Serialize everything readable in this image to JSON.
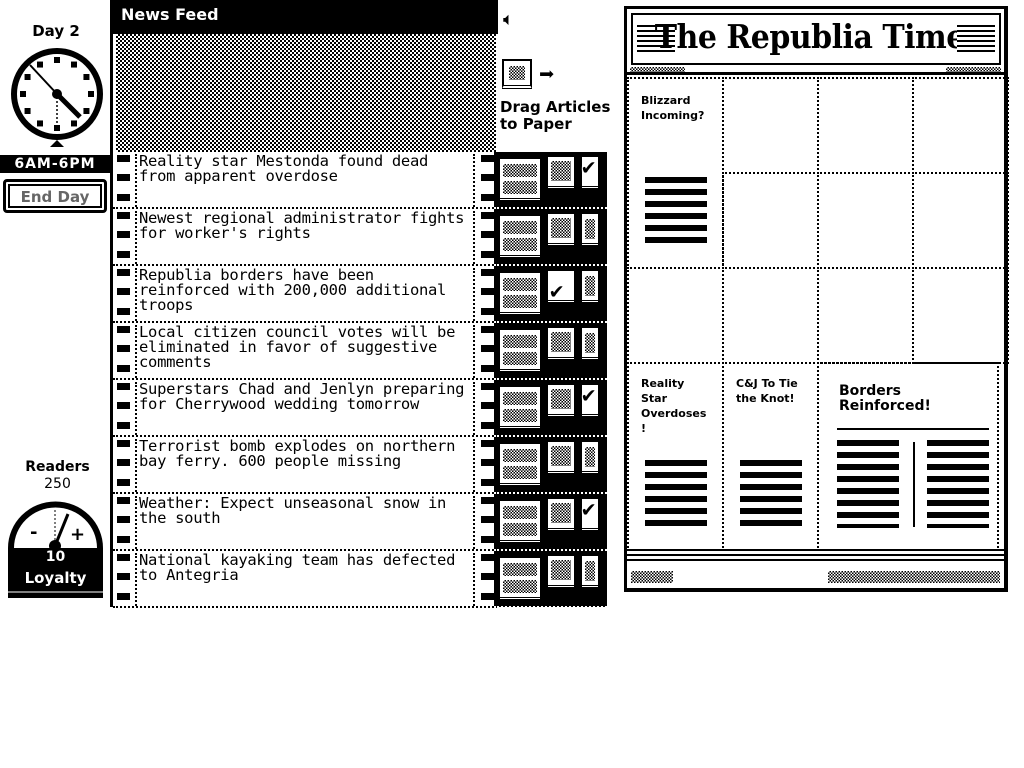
{
  "sidebar": {
    "day": "Day 2",
    "hours": "6AM-6PM",
    "end_day": "End Day",
    "readers_label": "Readers",
    "readers": "250",
    "loyalty_value": "10",
    "loyalty_label": "Loyalty",
    "gauge_minus": "-",
    "gauge_plus": "+"
  },
  "feed": {
    "title": "News Feed",
    "articles": [
      {
        "headline": "Reality star Mestonda found dead from apparent overdose",
        "selected_size": "small"
      },
      {
        "headline": "Newest regional administrator fights for worker's rights",
        "selected_size": null
      },
      {
        "headline": "Republia borders have been reinforced with 200,000 additional troops",
        "selected_size": "medium"
      },
      {
        "headline": "Local citizen council votes will be eliminated in favor of suggestive comments",
        "selected_size": null
      },
      {
        "headline": "Superstars Chad and Jenlyn preparing for Cherrywood wedding tomorrow",
        "selected_size": "small"
      },
      {
        "headline": "Terrorist bomb explodes on northern bay ferry. 600 people missing",
        "selected_size": null
      },
      {
        "headline": "Weather: Expect unseasonal snow in the south",
        "selected_size": "small"
      },
      {
        "headline": "National kayaking team has defected to Antegria",
        "selected_size": null
      }
    ]
  },
  "instructions": {
    "text1": "Drag Articles",
    "text2": "to Paper",
    "speaker_icon": "speaker-icon",
    "arrow_icon": "arrow-right-icon",
    "check_icon": "✔"
  },
  "paper": {
    "title": "The Republia Times",
    "stories": [
      {
        "headline": "Blizzard Incoming?"
      },
      {
        "headline": "Reality Star Overdoses !"
      },
      {
        "headline": "C&J To Tie the Knot!"
      },
      {
        "headline": "Borders Reinforced!"
      }
    ]
  },
  "colors": {
    "ink": "#000000",
    "paper": "#ffffff",
    "disabled_text": "#666666"
  }
}
